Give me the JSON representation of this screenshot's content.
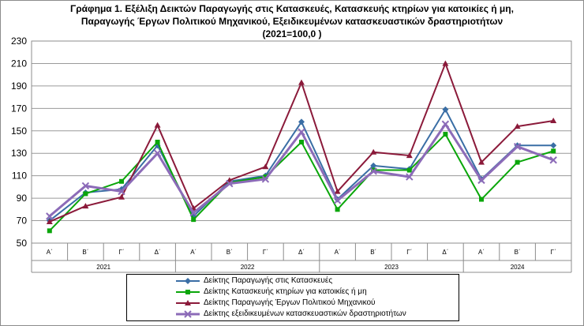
{
  "title_lines": [
    "Γράφημα 1. Εξέλιξη  Δεικτών Παραγωγής στις Κατασκευές,  Κατασκευής κτηρίων για κατοικίες ή  μη,",
    "Παραγωγής  Έργων Πολιτικού Μηχανικού,  Εξειδικευμένων κατασκευαστικών δραστηριοτήτων",
    "(2021=100,0 )"
  ],
  "chart_data": {
    "type": "line",
    "title": "Γράφημα 1. Εξέλιξη  Δεικτών Παραγωγής στις Κατασκευές,  Κατασκευής κτηρίων για κατοικίες ή  μη, Παραγωγής  Έργων Πολιτικού Μηχανικού,  Εξειδικευμένων κατασκευαστικών δραστηριοτήτων (2021=100,0 )",
    "categories": [
      "Α΄",
      "Β΄",
      "Γ΄",
      "Δ΄",
      "Α΄",
      "Β΄",
      "Γ΄",
      "Δ΄",
      "Α΄",
      "Β΄",
      "Γ΄",
      "Δ΄",
      "Α΄",
      "Β΄",
      "Γ΄"
    ],
    "years": [
      {
        "label": "2021",
        "count": 4
      },
      {
        "label": "2022",
        "count": 4
      },
      {
        "label": "2023",
        "count": 4
      },
      {
        "label": "2024",
        "count": 3
      }
    ],
    "y_ticks": [
      50,
      70,
      90,
      110,
      130,
      150,
      170,
      190,
      210,
      230
    ],
    "ylim": [
      50,
      230
    ],
    "grid": "horizontal",
    "legend_position": "bottom",
    "series": [
      {
        "name": "Δείκτης Παραγωγής στις Κατασκευές",
        "color": "#3a6ea5",
        "marker": "diamond",
        "values": [
          70,
          95,
          98,
          137,
          74,
          105,
          110,
          158,
          89,
          119,
          116,
          169,
          107,
          137,
          137
        ]
      },
      {
        "name": "Δείκτης Κατασκευής κτηρίων για κατοικίες ή μη",
        "color": "#0aa60a",
        "marker": "square",
        "values": [
          61,
          94,
          105,
          140,
          71,
          104,
          109,
          140,
          80,
          115,
          115,
          147,
          89,
          122,
          132
        ]
      },
      {
        "name": "Δείκτης Παραγωγής Έργων Πολιτικού Μηχανικού",
        "color": "#8b1a3a",
        "marker": "triangle",
        "values": [
          69,
          83,
          91,
          155,
          81,
          106,
          118,
          193,
          96,
          131,
          128,
          210,
          122,
          154,
          159
        ]
      },
      {
        "name": "Δείκτης εξειδικευμένων κατασκευαστικών δραστηριοτήτων",
        "color": "#8c6bb8",
        "marker": "x",
        "values": [
          74,
          101,
          96,
          130,
          77,
          103,
          107,
          149,
          88,
          114,
          109,
          156,
          106,
          136,
          124
        ]
      }
    ]
  }
}
